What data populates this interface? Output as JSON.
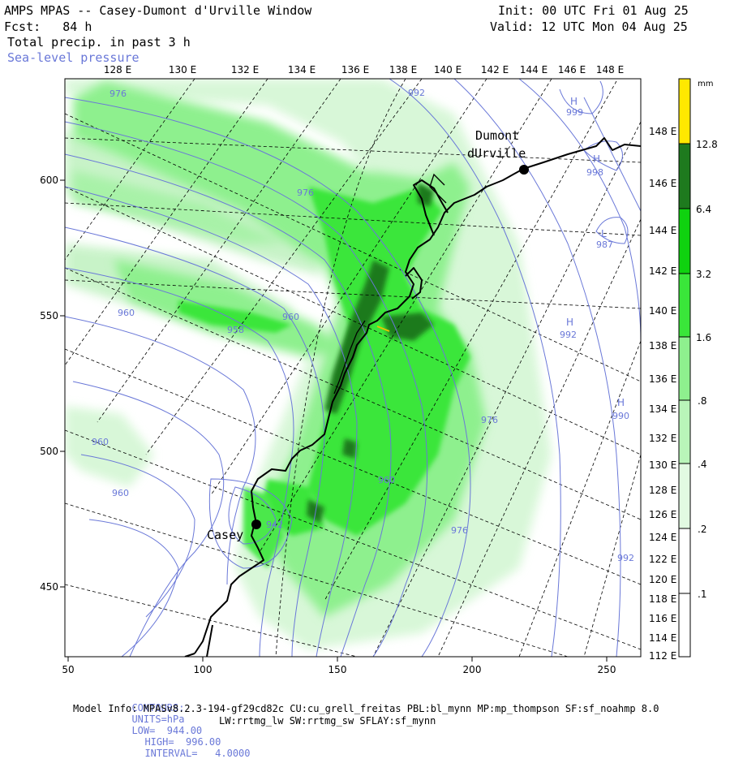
{
  "header": {
    "title": "AMPS MPAS -- Casey-Dumont d'Urville Window",
    "fcst": "Fcst:   84 h",
    "init": "Init: 00 UTC Fri 01 Aug 25",
    "valid": "Valid: 12 UTC Mon 04 Aug 25",
    "field": "Total precip. in past 3 h",
    "overlay": "Sea-level pressure"
  },
  "top_lon_labels": [
    "128 E",
    "130 E",
    "132 E",
    "134 E",
    "136 E",
    "138 E",
    "140 E",
    "142 E",
    "144 E",
    "146 E",
    "148 E"
  ],
  "right_lon_labels": [
    "148 E",
    "146 E",
    "144 E",
    "142 E",
    "140 E",
    "138 E",
    "136 E",
    "134 E",
    "132 E",
    "130 E",
    "128 E",
    "126 E",
    "124 E",
    "122 E",
    "120 E",
    "118 E",
    "116 E",
    "114 E",
    "112 E"
  ],
  "x_axis_labels": [
    "50",
    "100",
    "150",
    "200",
    "250"
  ],
  "y_axis_labels": [
    "600",
    "550",
    "500",
    "450"
  ],
  "stations": [
    {
      "name": "Dumont",
      "name2": "dUrville"
    },
    {
      "name": "Casey"
    }
  ],
  "pressure_labels": [
    "976",
    "992",
    "999",
    "998",
    "987",
    "992",
    "990",
    "976",
    "976",
    "960",
    "960",
    "960",
    "960",
    "958",
    "942",
    "960",
    "976",
    "992"
  ],
  "hl_marks": [
    "H",
    "H",
    "L",
    "H",
    "H"
  ],
  "colorbar": {
    "unit": "mm",
    "labels": [
      "12.8",
      "6.4",
      "3.2",
      "1.6",
      ".8",
      ".4",
      ".2",
      ".1"
    ],
    "colors": [
      "#ffe800",
      "#1e7a1e",
      "#0fd20f",
      "#3ae63a",
      "#8ef08e",
      "#b9f5b9",
      "#e2fae2",
      "#ffffff"
    ]
  },
  "footer": {
    "contours_label": "CONTOURS:",
    "units": "UNITS=hPa",
    "low": "LOW=  944.00",
    "high": "HIGH=  996.00",
    "interval": "INTERVAL=   4.0000",
    "model_info": "Model Info: MPASv8.2.3-194-gf29cd82c CU:cu_grell_freitas PBL:bl_mynn MP:mp_thompson SF:sf_noahmp 8.0",
    "model_info2": "LW:rrtmg_lw SW:rrtmg_sw SFLAY:sf_mynn"
  }
}
